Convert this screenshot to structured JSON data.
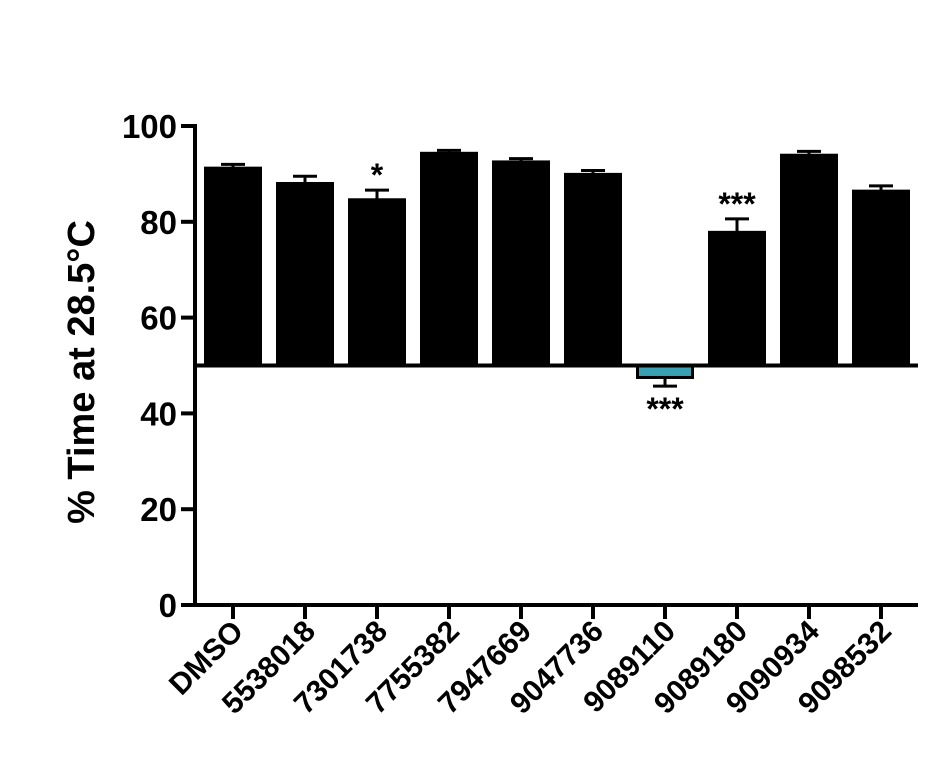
{
  "chart_data": {
    "type": "bar",
    "title": "",
    "ylabel": "% Time at 28.5°C",
    "xlabel": "",
    "ylim": [
      0,
      100
    ],
    "baseline": 50,
    "yticks": [
      0,
      20,
      40,
      60,
      80,
      100
    ],
    "ytick_labels": [
      "0",
      "20",
      "40",
      "60",
      "80",
      "100"
    ],
    "categories": [
      "DMSO",
      "5538018",
      "7301738",
      "7755382",
      "7947669",
      "9047736",
      "9089110",
      "9089180",
      "9090934",
      "9098532"
    ],
    "values": [
      91.2,
      88.0,
      84.6,
      94.3,
      92.5,
      89.9,
      47.5,
      77.8,
      93.9,
      86.4
    ],
    "errors": [
      0.8,
      1.5,
      2.0,
      0.6,
      0.7,
      0.8,
      1.8,
      2.8,
      0.8,
      1.1
    ],
    "bar_colors": [
      "#000000",
      "#000000",
      "#000000",
      "#000000",
      "#000000",
      "#000000",
      "#3aa0b4",
      "#000000",
      "#000000",
      "#000000"
    ],
    "annotations": [
      "",
      "",
      "*",
      "",
      "",
      "",
      "***",
      "***",
      "",
      ""
    ],
    "legend": "none",
    "grid": false
  }
}
